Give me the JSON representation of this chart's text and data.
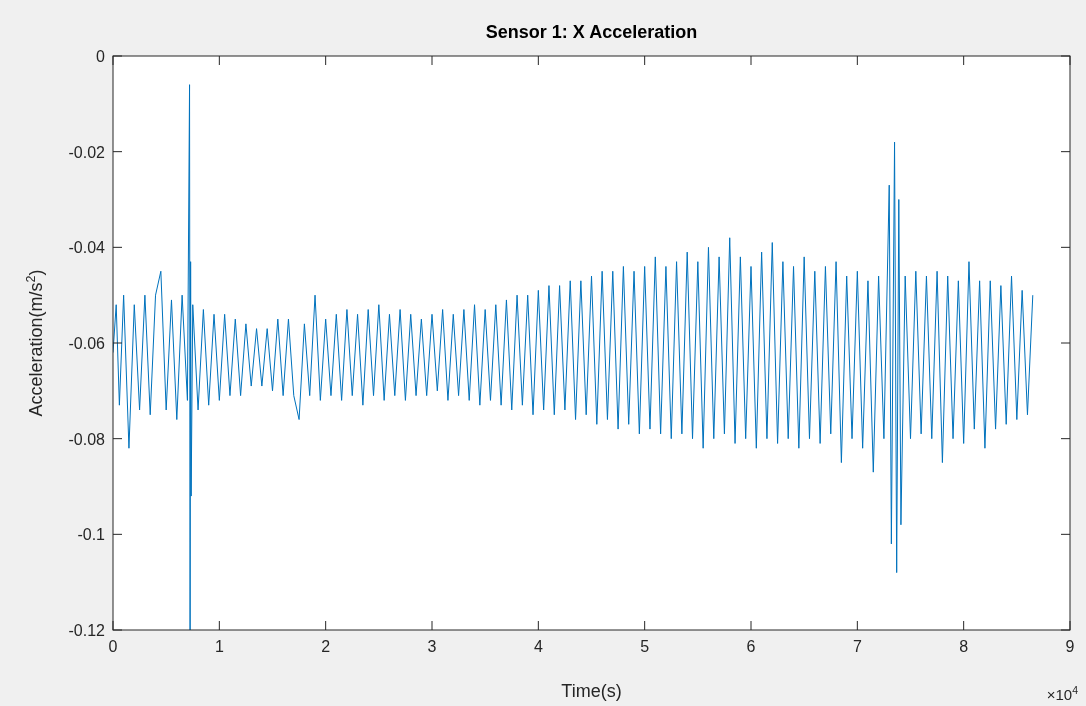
{
  "chart_data": {
    "type": "line",
    "title": "Sensor 1: X Acceleration",
    "xlabel": "Time(s)",
    "ylabel": "Acceleration(m/s$^{2}$)",
    "annotations": [
      "×10$^{4}$"
    ],
    "xlim": [
      0,
      9
    ],
    "xticks": [
      0,
      1,
      2,
      3,
      4,
      5,
      6,
      7,
      8,
      9
    ],
    "ylim": [
      -0.12,
      0
    ],
    "yticks": [
      -0.12,
      -0.1,
      -0.08,
      -0.06,
      -0.04,
      -0.02,
      0
    ],
    "grid": false,
    "series": [
      {
        "color": "#0072bd",
        "x": [
          0,
          0.03,
          0.06,
          0.1,
          0.15,
          0.2,
          0.25,
          0.3,
          0.35,
          0.4,
          0.45,
          0.5,
          0.55,
          0.6,
          0.65,
          0.7,
          0.72,
          0.725,
          0.73,
          0.735,
          0.75,
          0.8,
          0.85,
          0.9,
          0.95,
          1,
          1.05,
          1.1,
          1.15,
          1.2,
          1.25,
          1.3,
          1.35,
          1.4,
          1.45,
          1.5,
          1.55,
          1.6,
          1.65,
          1.7,
          1.75,
          1.8,
          1.85,
          1.9,
          1.95,
          2,
          2.05,
          2.1,
          2.15,
          2.2,
          2.25,
          2.3,
          2.35,
          2.4,
          2.45,
          2.5,
          2.55,
          2.6,
          2.65,
          2.7,
          2.75,
          2.8,
          2.85,
          2.9,
          2.95,
          3,
          3.05,
          3.1,
          3.15,
          3.2,
          3.25,
          3.3,
          3.35,
          3.4,
          3.45,
          3.5,
          3.55,
          3.6,
          3.65,
          3.7,
          3.75,
          3.8,
          3.85,
          3.9,
          3.95,
          4,
          4.05,
          4.1,
          4.15,
          4.2,
          4.25,
          4.3,
          4.35,
          4.4,
          4.45,
          4.5,
          4.55,
          4.6,
          4.65,
          4.7,
          4.75,
          4.8,
          4.85,
          4.9,
          4.95,
          5,
          5.05,
          5.1,
          5.15,
          5.2,
          5.25,
          5.3,
          5.35,
          5.4,
          5.45,
          5.5,
          5.55,
          5.6,
          5.65,
          5.7,
          5.75,
          5.8,
          5.85,
          5.9,
          5.95,
          6,
          6.05,
          6.1,
          6.15,
          6.2,
          6.25,
          6.3,
          6.35,
          6.4,
          6.45,
          6.5,
          6.55,
          6.6,
          6.65,
          6.7,
          6.75,
          6.8,
          6.85,
          6.9,
          6.95,
          7,
          7.05,
          7.1,
          7.15,
          7.2,
          7.25,
          7.3,
          7.32,
          7.35,
          7.37,
          7.39,
          7.41,
          7.45,
          7.5,
          7.55,
          7.6,
          7.65,
          7.7,
          7.75,
          7.8,
          7.85,
          7.9,
          7.95,
          8,
          8.05,
          8.1,
          8.15,
          8.2,
          8.25,
          8.3,
          8.35,
          8.4,
          8.45,
          8.5,
          8.55,
          8.6,
          8.65
        ],
        "values": [
          -0.062,
          -0.052,
          -0.073,
          -0.05,
          -0.082,
          -0.052,
          -0.074,
          -0.05,
          -0.075,
          -0.05,
          -0.045,
          -0.074,
          -0.051,
          -0.076,
          -0.05,
          -0.072,
          -0.006,
          -0.12,
          -0.043,
          -0.092,
          -0.052,
          -0.074,
          -0.053,
          -0.073,
          -0.054,
          -0.072,
          -0.054,
          -0.071,
          -0.055,
          -0.071,
          -0.056,
          -0.069,
          -0.057,
          -0.069,
          -0.057,
          -0.07,
          -0.055,
          -0.071,
          -0.055,
          -0.071,
          -0.076,
          -0.056,
          -0.071,
          -0.05,
          -0.072,
          -0.055,
          -0.071,
          -0.054,
          -0.072,
          -0.053,
          -0.071,
          -0.054,
          -0.073,
          -0.053,
          -0.071,
          -0.052,
          -0.072,
          -0.054,
          -0.071,
          -0.053,
          -0.072,
          -0.054,
          -0.071,
          -0.055,
          -0.071,
          -0.054,
          -0.07,
          -0.053,
          -0.072,
          -0.054,
          -0.071,
          -0.053,
          -0.072,
          -0.052,
          -0.073,
          -0.053,
          -0.072,
          -0.052,
          -0.073,
          -0.051,
          -0.074,
          -0.05,
          -0.073,
          -0.05,
          -0.075,
          -0.049,
          -0.074,
          -0.048,
          -0.075,
          -0.048,
          -0.074,
          -0.047,
          -0.076,
          -0.047,
          -0.075,
          -0.046,
          -0.077,
          -0.045,
          -0.076,
          -0.045,
          -0.078,
          -0.044,
          -0.077,
          -0.045,
          -0.079,
          -0.044,
          -0.078,
          -0.042,
          -0.079,
          -0.044,
          -0.08,
          -0.043,
          -0.079,
          -0.041,
          -0.08,
          -0.043,
          -0.082,
          -0.04,
          -0.08,
          -0.042,
          -0.079,
          -0.038,
          -0.081,
          -0.042,
          -0.08,
          -0.044,
          -0.082,
          -0.041,
          -0.08,
          -0.039,
          -0.081,
          -0.043,
          -0.08,
          -0.044,
          -0.082,
          -0.042,
          -0.08,
          -0.045,
          -0.081,
          -0.044,
          -0.079,
          -0.043,
          -0.085,
          -0.046,
          -0.08,
          -0.045,
          -0.082,
          -0.047,
          -0.087,
          -0.046,
          -0.08,
          -0.027,
          -0.102,
          -0.018,
          -0.108,
          -0.03,
          -0.098,
          -0.046,
          -0.08,
          -0.045,
          -0.079,
          -0.046,
          -0.08,
          -0.045,
          -0.085,
          -0.046,
          -0.08,
          -0.047,
          -0.081,
          -0.043,
          -0.078,
          -0.047,
          -0.082,
          -0.047,
          -0.078,
          -0.048,
          -0.077,
          -0.046,
          -0.076,
          -0.049,
          -0.075,
          -0.05
        ]
      }
    ]
  }
}
